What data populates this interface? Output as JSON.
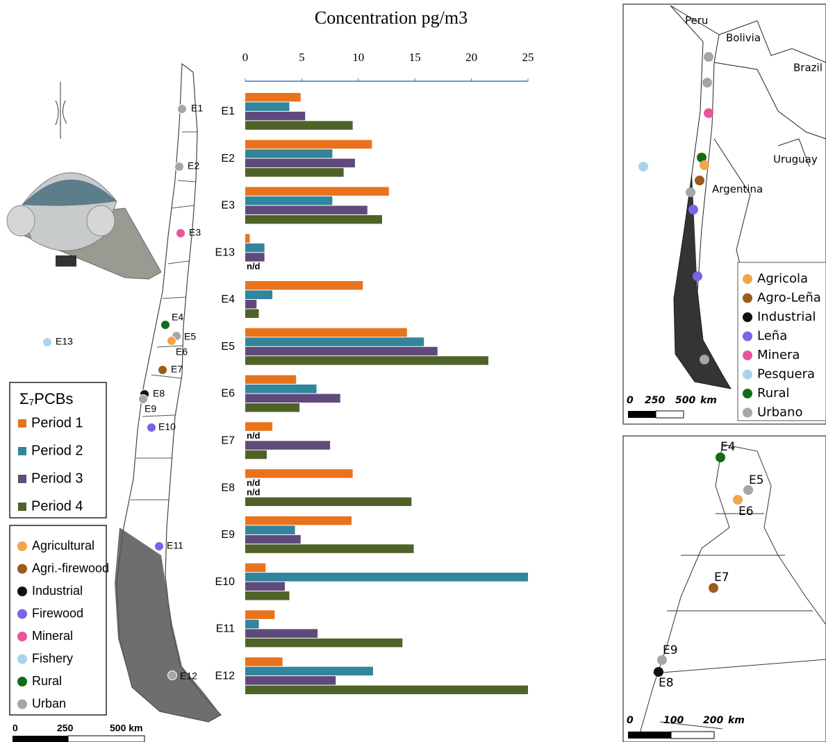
{
  "chart_data": {
    "type": "bar",
    "orientation": "horizontal",
    "title": "Concentration pg/m3",
    "categories": [
      "E1",
      "E2",
      "E3",
      "E13",
      "E4",
      "E5",
      "E6",
      "E7",
      "E8",
      "E9",
      "E10",
      "E11",
      "E12"
    ],
    "series": [
      {
        "name": "Period 1",
        "color": "#e8731c",
        "values": [
          4.9,
          11.2,
          12.7,
          0.4,
          10.4,
          14.3,
          4.5,
          2.4,
          9.5,
          9.4,
          1.8,
          2.6,
          3.3
        ],
        "value_labels": [
          null,
          null,
          null,
          null,
          null,
          null,
          null,
          null,
          null,
          null,
          null,
          null,
          null
        ]
      },
      {
        "name": "Period 2",
        "color": "#31859c",
        "values": [
          3.9,
          7.7,
          7.7,
          1.7,
          2.4,
          15.8,
          6.3,
          null,
          null,
          4.4,
          25,
          1.2,
          11.3
        ],
        "value_labels": [
          null,
          null,
          null,
          null,
          null,
          null,
          null,
          "n/d",
          "n/d",
          null,
          null,
          null,
          null
        ]
      },
      {
        "name": "Period 3",
        "color": "#604a7b",
        "values": [
          5.3,
          9.7,
          10.8,
          1.7,
          1.0,
          17.0,
          8.4,
          7.5,
          null,
          4.9,
          3.5,
          6.4,
          8.0
        ],
        "value_labels": [
          null,
          null,
          null,
          null,
          null,
          null,
          null,
          null,
          "n/d",
          null,
          null,
          null,
          null
        ]
      },
      {
        "name": "Period 4",
        "color": "#4f6228",
        "values": [
          9.5,
          8.7,
          12.1,
          null,
          1.2,
          21.5,
          4.8,
          1.9,
          14.7,
          14.9,
          3.9,
          13.9,
          25
        ],
        "value_labels": [
          null,
          null,
          null,
          "n/d",
          null,
          null,
          null,
          null,
          null,
          null,
          null,
          null,
          null
        ]
      }
    ],
    "xlim": [
      0,
      25
    ],
    "xticks": [
      0,
      5,
      10,
      15,
      20,
      25
    ],
    "legend_title": "Σ₇PCBs"
  },
  "left_map": {
    "stations": [
      {
        "label": "E1",
        "color": "#a6a6a6"
      },
      {
        "label": "E2",
        "color": "#a6a6a6"
      },
      {
        "label": "E3",
        "color": "#e8559a"
      },
      {
        "label": "E4",
        "color": "#116c16"
      },
      {
        "label": "E5",
        "color": "#a6a6a6"
      },
      {
        "label": "E6",
        "color": "#f4a44a"
      },
      {
        "label": "E7",
        "color": "#9c5a1e"
      },
      {
        "label": "E8",
        "color": "#111111"
      },
      {
        "label": "E9",
        "color": "#a6a6a6"
      },
      {
        "label": "E10",
        "color": "#7a63e6"
      },
      {
        "label": "E11",
        "color": "#7a63e6"
      },
      {
        "label": "E12",
        "color": "#a6a6a6"
      },
      {
        "label": "E13",
        "color": "#a9d3ea"
      }
    ],
    "legend": [
      {
        "name": "Agricultural",
        "color": "#f4a44a"
      },
      {
        "name": "Agri.-firewood",
        "color": "#9c5a1e"
      },
      {
        "name": "Industrial",
        "color": "#111111"
      },
      {
        "name": "Firewood",
        "color": "#7a63e6"
      },
      {
        "name": "Mineral",
        "color": "#e8559a"
      },
      {
        "name": "Fishery",
        "color": "#a9d3ea"
      },
      {
        "name": "Rural",
        "color": "#116c16"
      },
      {
        "name": "Urban",
        "color": "#a6a6a6"
      }
    ],
    "scale": [
      "0",
      "250",
      "500 km"
    ]
  },
  "right_top_map": {
    "countries": [
      "Peru",
      "Bolivia",
      "Brazil",
      "Uruguay",
      "Argentina"
    ],
    "legend": [
      {
        "name": "Agricola",
        "color": "#f4a44a"
      },
      {
        "name": "Agro-Leña",
        "color": "#9c5a1e"
      },
      {
        "name": "Industrial",
        "color": "#111111"
      },
      {
        "name": "Leña",
        "color": "#7a63e6"
      },
      {
        "name": "Minera",
        "color": "#e8559a"
      },
      {
        "name": "Pesquera",
        "color": "#a9d3ea"
      },
      {
        "name": "Rural",
        "color": "#116c16"
      },
      {
        "name": "Urbano",
        "color": "#a6a6a6"
      }
    ],
    "scale": [
      "0",
      "250",
      "500",
      "km"
    ]
  },
  "right_bottom_map": {
    "stations": [
      {
        "label": "E4",
        "color": "#116c16"
      },
      {
        "label": "E5",
        "color": "#a6a6a6"
      },
      {
        "label": "E6",
        "color": "#f4a44a"
      },
      {
        "label": "E7",
        "color": "#9c5a1e"
      },
      {
        "label": "E9",
        "color": "#a6a6a6"
      },
      {
        "label": "E8",
        "color": "#111111"
      }
    ],
    "scale": [
      "0",
      "100",
      "200",
      "km"
    ]
  }
}
